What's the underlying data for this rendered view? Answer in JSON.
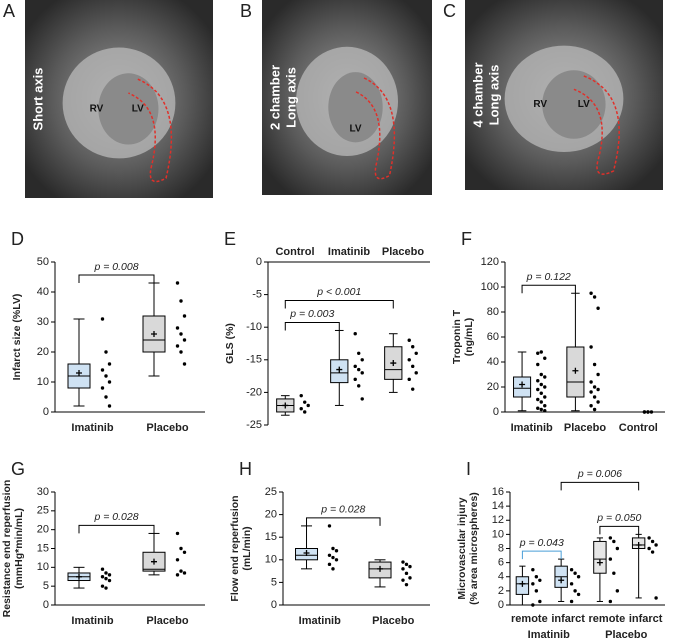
{
  "images": [
    {
      "panel": "A",
      "caption": [
        "Short axis"
      ],
      "labels": [
        "RV",
        "LV"
      ]
    },
    {
      "panel": "B",
      "caption": [
        "2 chamber",
        "Long axis"
      ],
      "labels": [
        "LV"
      ]
    },
    {
      "panel": "C",
      "caption": [
        "4 chamber",
        "Long axis"
      ],
      "labels": [
        "RV",
        "LV"
      ]
    }
  ],
  "chart_data": [
    {
      "type": "box",
      "panel": "D",
      "ylabel": [
        "Infarct size (%LV)"
      ],
      "ylim": [
        0,
        50
      ],
      "yticks": [
        0,
        10,
        20,
        30,
        40,
        50
      ],
      "categories": [
        "Imatinib",
        "Placebo"
      ],
      "boxes": [
        {
          "min": 2,
          "q1": 8,
          "median": 12,
          "q3": 16,
          "max": 31,
          "mean": 13,
          "color": "#cfe2f3"
        },
        {
          "min": 12,
          "q1": 20,
          "median": 24,
          "q3": 32,
          "max": 43,
          "mean": 26,
          "color": "#d9d9d9"
        }
      ],
      "points": [
        [
          31,
          20,
          16,
          14,
          12,
          10,
          8,
          5,
          2
        ],
        [
          43,
          37,
          32,
          28,
          26,
          24,
          22,
          20,
          16
        ]
      ],
      "annotations": [
        {
          "label": "p = 0.008",
          "from": 0,
          "to": 1,
          "color": "#000000"
        }
      ]
    },
    {
      "type": "box",
      "panel": "E",
      "ylabel": [
        "GLS (%)"
      ],
      "ylim": [
        -25,
        0
      ],
      "yticks": [
        -25,
        -20,
        -15,
        -10,
        -5,
        0
      ],
      "category_labels_top": true,
      "categories": [
        "Control",
        "Imatinib",
        "Placebo"
      ],
      "boxes": [
        {
          "min": -23.5,
          "q1": -23,
          "median": -22,
          "q3": -21,
          "max": -20.5,
          "mean": -22,
          "color": "#d9d9d9"
        },
        {
          "min": -22,
          "q1": -18.5,
          "median": -17,
          "q3": -15,
          "max": -10.5,
          "mean": -16.5,
          "color": "#cfe2f3"
        },
        {
          "min": -20,
          "q1": -18,
          "median": -16.5,
          "q3": -13,
          "max": -11,
          "mean": -15.5,
          "color": "#d9d9d9"
        }
      ],
      "points": [
        [
          -20.5,
          -21.5,
          -22,
          -22.5,
          -23
        ],
        [
          -11,
          -14,
          -15,
          -16,
          -16.5,
          -17,
          -18,
          -19,
          -21
        ],
        [
          -12,
          -13,
          -14,
          -15,
          -16,
          -17,
          -18,
          -19.5
        ]
      ],
      "annotations": [
        {
          "label": "p = 0.003",
          "from": 0,
          "to": 1,
          "color": "#000000"
        },
        {
          "label": "p < 0.001",
          "from": 0,
          "to": 2,
          "color": "#000000"
        }
      ]
    },
    {
      "type": "box",
      "panel": "F",
      "ylabel": [
        "Troponin T",
        "(ng/mL)"
      ],
      "ylim": [
        0,
        120
      ],
      "yticks": [
        0,
        20,
        40,
        60,
        80,
        100,
        120
      ],
      "categories": [
        "Imatinib",
        "Placebo",
        "Control"
      ],
      "boxes": [
        {
          "min": 1,
          "q1": 12,
          "median": 19,
          "q3": 28,
          "max": 48,
          "mean": 22,
          "color": "#cfe2f3"
        },
        {
          "min": 1,
          "q1": 12,
          "median": 24,
          "q3": 52,
          "max": 95,
          "mean": 33,
          "color": "#d9d9d9"
        },
        null
      ],
      "points": [
        [
          47,
          48,
          43,
          38,
          30,
          28,
          25,
          22,
          20,
          18,
          15,
          12,
          10,
          8,
          5,
          3,
          2,
          1
        ],
        [
          95,
          92,
          83,
          52,
          38,
          30,
          24,
          20,
          18,
          16,
          12,
          8,
          5,
          2
        ],
        [
          0,
          0,
          0,
          0,
          0
        ]
      ],
      "annotations": [
        {
          "label": "p = 0.122",
          "from": 0,
          "to": 1,
          "color": "#000000"
        }
      ]
    },
    {
      "type": "box",
      "panel": "G",
      "ylabel": [
        "Resistance end reperfusion",
        "(mmHg*min/mL)"
      ],
      "ylim": [
        0,
        30
      ],
      "yticks": [
        0,
        5,
        10,
        15,
        20,
        25,
        30
      ],
      "categories": [
        "Imatinib",
        "Placebo"
      ],
      "boxes": [
        {
          "min": 4.5,
          "q1": 6.5,
          "median": 7.5,
          "q3": 8.5,
          "max": 10,
          "mean": 7.5,
          "color": "#cfe2f3"
        },
        {
          "min": 8,
          "q1": 9,
          "median": 9.5,
          "q3": 14,
          "max": 19,
          "mean": 11.5,
          "color": "#d9d9d9"
        }
      ],
      "points": [
        [
          9.5,
          8.5,
          8,
          7.5,
          7,
          6.5,
          5,
          4.5
        ],
        [
          19,
          15,
          14,
          12,
          9,
          8.5,
          8
        ]
      ],
      "annotations": [
        {
          "label": "p = 0.028",
          "from": 0,
          "to": 1,
          "color": "#000000"
        }
      ]
    },
    {
      "type": "box",
      "panel": "H",
      "ylabel": [
        "Flow end reperfusion",
        "(mL/min)"
      ],
      "ylim": [
        0,
        25
      ],
      "yticks": [
        0,
        5,
        10,
        15,
        20,
        25
      ],
      "categories": [
        "Imatinib",
        "Placebo"
      ],
      "boxes": [
        {
          "min": 8,
          "q1": 10,
          "median": 11,
          "q3": 12.5,
          "max": 17.5,
          "mean": 11.5,
          "color": "#cfe2f3"
        },
        {
          "min": 4,
          "q1": 6,
          "median": 8,
          "q3": 9.5,
          "max": 10,
          "mean": 8,
          "color": "#d9d9d9"
        }
      ],
      "points": [
        [
          17.5,
          12.5,
          12,
          11,
          10.5,
          10,
          9,
          8
        ],
        [
          9.5,
          9,
          8.5,
          8,
          7,
          6,
          5.5,
          4.5
        ]
      ],
      "annotations": [
        {
          "label": "p = 0.028",
          "from": 0,
          "to": 1,
          "color": "#000000"
        }
      ]
    },
    {
      "type": "box",
      "panel": "I",
      "ylabel": [
        "Microvascular injury",
        "(% area microspheres)"
      ],
      "ylim": [
        0,
        16
      ],
      "yticks": [
        0,
        2,
        4,
        6,
        8,
        10,
        12,
        14,
        16
      ],
      "categories": [
        "remote",
        "infarct",
        "remote",
        "infarct"
      ],
      "groups": [
        {
          "label": "Imatinib",
          "from": 0,
          "to": 1
        },
        {
          "label": "Placebo",
          "from": 2,
          "to": 3
        }
      ],
      "boxes": [
        {
          "min": 0,
          "q1": 1.5,
          "median": 3,
          "q3": 4,
          "max": 5.5,
          "mean": 3,
          "color": "#cfe2f3"
        },
        {
          "min": 0.5,
          "q1": 2.5,
          "median": 4,
          "q3": 5.5,
          "max": 6.5,
          "mean": 3.5,
          "color": "#cfe2f3"
        },
        {
          "min": 0.5,
          "q1": 4.5,
          "median": 6.5,
          "q3": 9,
          "max": 9.5,
          "mean": 6,
          "color": "#e6e6e6"
        },
        {
          "min": 1,
          "q1": 8,
          "median": 8.5,
          "q3": 9.5,
          "max": 10,
          "mean": 8.5,
          "color": "#e6e6e6"
        }
      ],
      "points": [
        [
          5,
          4,
          3.5,
          3,
          2,
          0.5,
          0
        ],
        [
          5,
          4.5,
          4,
          3,
          2,
          1.5,
          0.5
        ],
        [
          9.5,
          9,
          8,
          6.5,
          4.5,
          2,
          0.5
        ],
        [
          9.5,
          9,
          8.5,
          8,
          7.5,
          1
        ]
      ],
      "annotations": [
        {
          "label": "p = 0.043",
          "from": 0,
          "to": 1,
          "color": "#4a9fd8"
        },
        {
          "label": "p = 0.050",
          "from": 2,
          "to": 3,
          "color": "#000000"
        },
        {
          "label": "p = 0.006",
          "from": 1,
          "to": 3,
          "color": "#000000"
        }
      ]
    }
  ]
}
